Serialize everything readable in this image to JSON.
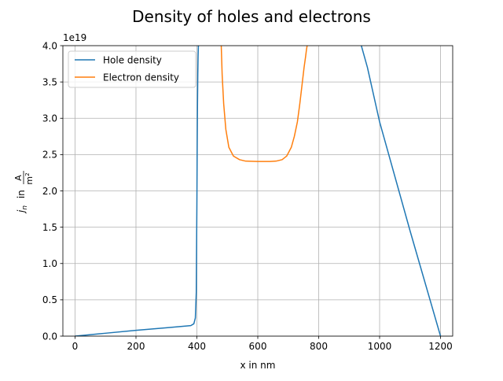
{
  "chart_data": {
    "type": "line",
    "title": "Density of holes and electrons",
    "xlabel": "x in nm",
    "ylabel_main": "j",
    "ylabel_sub": "n",
    "ylabel_in": " in ",
    "ylabel_unit_num": "A",
    "ylabel_unit_den": "m",
    "ylabel_unit_den_sup": "2",
    "y_offset_label": "1e19",
    "xlim": [
      -40,
      1240
    ],
    "ylim": [
      0,
      4.0
    ],
    "y_scale_factor": 1e+19,
    "x_ticks": [
      0,
      200,
      400,
      600,
      800,
      1000,
      1200
    ],
    "x_tick_labels": [
      "0",
      "200",
      "400",
      "600",
      "800",
      "1000",
      "1200"
    ],
    "y_ticks": [
      0,
      0.5,
      1.0,
      1.5,
      2.0,
      2.5,
      3.0,
      3.5,
      4.0
    ],
    "y_tick_labels": [
      "0.0",
      "0.5",
      "1.0",
      "1.5",
      "2.0",
      "2.5",
      "3.0",
      "3.5",
      "4.0"
    ],
    "grid": true,
    "legend_position": "top-left",
    "series": [
      {
        "name": "Hole density",
        "color": "#1f77b4",
        "x": [
          0,
          100,
          200,
          300,
          380,
          390,
          395,
          398,
          400,
          401,
          402,
          403,
          404,
          405,
          406,
          null,
          940,
          960,
          1000,
          1100,
          1200
        ],
        "y": [
          0.0,
          0.04,
          0.08,
          0.115,
          0.145,
          0.17,
          0.25,
          0.6,
          1.8,
          2.6,
          3.2,
          3.6,
          3.85,
          4.0,
          4.3,
          null,
          4.0,
          3.7,
          2.95,
          1.45,
          0.0
        ]
      },
      {
        "name": "Electron density",
        "color": "#ff7f0e",
        "x": [
          480,
          483,
          488,
          495,
          505,
          520,
          540,
          560,
          600,
          640,
          660,
          680,
          695,
          710,
          720,
          730,
          738,
          745,
          752,
          757,
          760,
          762
        ],
        "y": [
          4.0,
          3.6,
          3.2,
          2.85,
          2.6,
          2.48,
          2.43,
          2.41,
          2.405,
          2.405,
          2.41,
          2.43,
          2.48,
          2.6,
          2.75,
          2.95,
          3.2,
          3.45,
          3.7,
          3.85,
          3.95,
          4.0
        ]
      }
    ]
  }
}
